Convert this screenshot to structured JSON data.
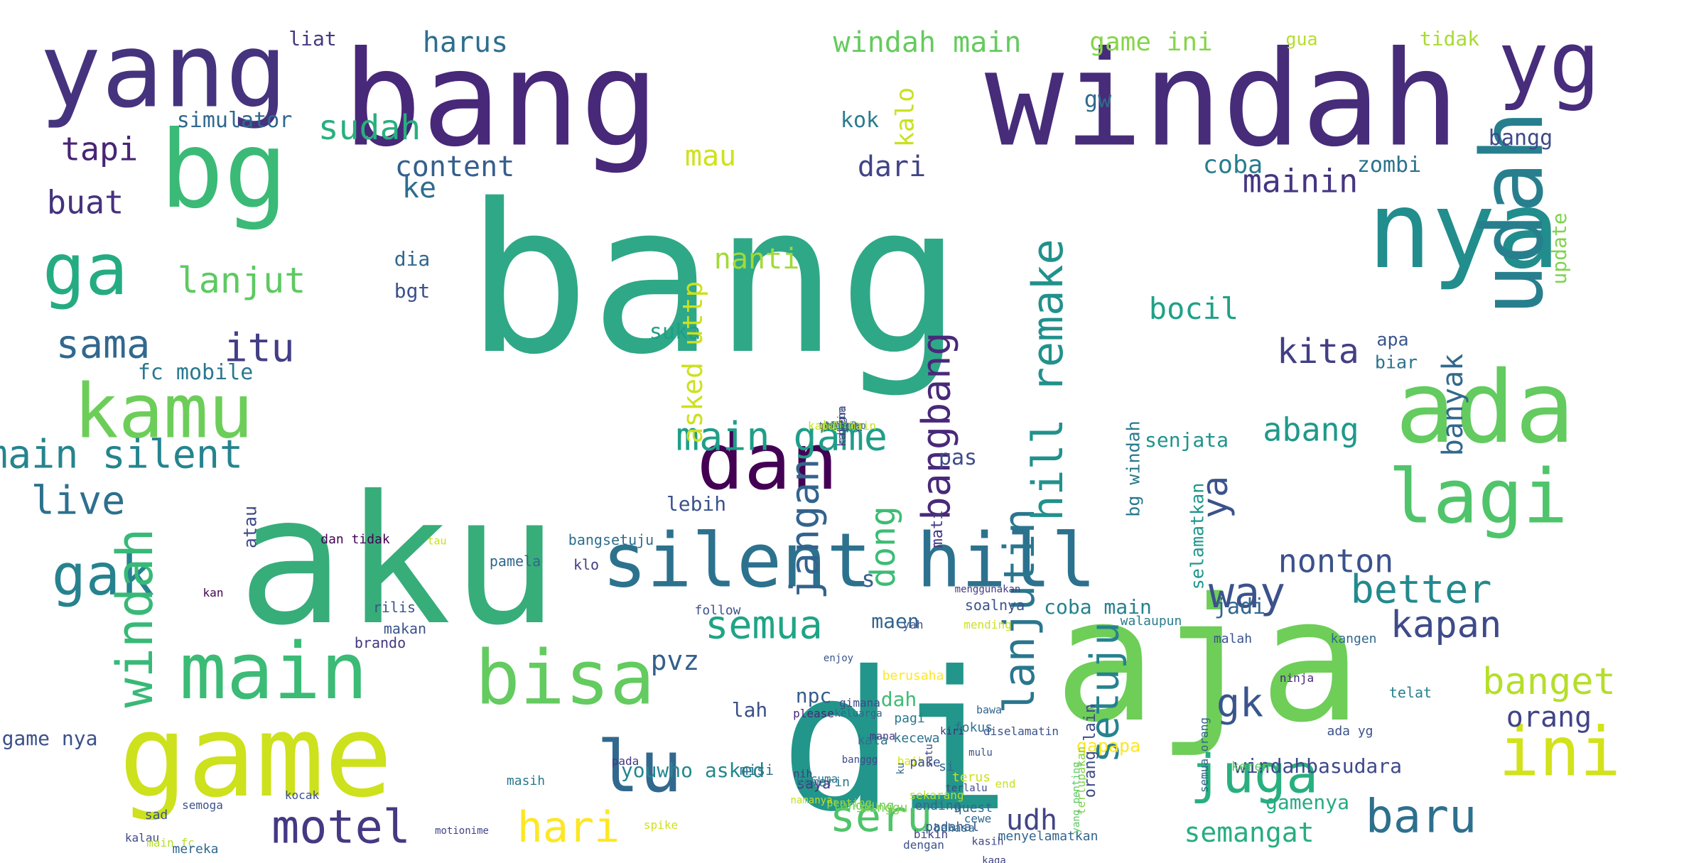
{
  "words": [
    {
      "t": "bang",
      "c": "#2fa887",
      "f": 290,
      "r": 0
    },
    {
      "t": "aku",
      "c": "#37ad7a",
      "f": 250,
      "r": 0
    },
    {
      "t": "windah",
      "c": "#472c7a",
      "f": 185,
      "r": 0
    },
    {
      "t": "bang",
      "c": "#482878",
      "f": 185,
      "r": 0
    },
    {
      "t": "di",
      "c": "#22968b",
      "f": 270,
      "r": 0
    },
    {
      "t": "aja",
      "c": "#6ece58",
      "f": 240,
      "r": 0
    },
    {
      "t": "game",
      "c": "#cde11d",
      "f": 160,
      "r": 0
    },
    {
      "t": "yang",
      "c": "#46337e",
      "f": 145,
      "r": 0
    },
    {
      "t": "bg",
      "c": "#3aba76",
      "f": 150,
      "r": 0
    },
    {
      "t": "nya",
      "c": "#228d8d",
      "f": 150,
      "r": 0
    },
    {
      "t": "ada",
      "c": "#63cb5f",
      "f": 140,
      "r": 0
    },
    {
      "t": "yg",
      "c": "#472d7b",
      "f": 120,
      "r": 0
    },
    {
      "t": "udah",
      "c": "#277f8e",
      "f": 120,
      "r": 1
    },
    {
      "t": "ga",
      "c": "#25ab82",
      "f": 100,
      "r": 0
    },
    {
      "t": "kamu",
      "c": "#6cce59",
      "f": 105,
      "r": 0
    },
    {
      "t": "main",
      "c": "#3bbb75",
      "f": 110,
      "r": 0
    },
    {
      "t": "bisa",
      "c": "#63cb5f",
      "f": 105,
      "r": 0
    },
    {
      "t": "silent hill",
      "c": "#2c728e",
      "f": 105,
      "r": 0
    },
    {
      "t": "dan",
      "c": "#440154",
      "f": 110,
      "r": 0
    },
    {
      "t": "lu",
      "c": "#31688e",
      "f": 100,
      "r": 0
    },
    {
      "t": "lagi",
      "c": "#50c46a",
      "f": 105,
      "r": 0
    },
    {
      "t": "ini",
      "c": "#d2e21b",
      "f": 95,
      "r": 0
    },
    {
      "t": "gak",
      "c": "#26828e",
      "f": 80,
      "r": 0
    },
    {
      "t": "juga",
      "c": "#29af7f",
      "f": 75,
      "r": 0
    },
    {
      "t": "windah",
      "c": "#38b977",
      "f": 70,
      "r": 1
    },
    {
      "t": "motel",
      "c": "#443983",
      "f": 65,
      "r": 0
    },
    {
      "t": "baru",
      "c": "#2d708e",
      "f": 65,
      "r": 0
    },
    {
      "t": "hari",
      "c": "#fde725",
      "f": 60,
      "r": 0
    },
    {
      "t": "seru",
      "c": "#4fc46a",
      "f": 60,
      "r": 0
    },
    {
      "t": "semua",
      "c": "#20a486",
      "f": 55,
      "r": 0
    },
    {
      "t": "way",
      "c": "#3b528b",
      "f": 60,
      "r": 0
    },
    {
      "t": "better",
      "c": "#23898e",
      "f": 55,
      "r": 0
    },
    {
      "t": "kapan",
      "c": "#3e4a89",
      "f": 52,
      "r": 0
    },
    {
      "t": "banget",
      "c": "#b5de2b",
      "f": 52,
      "r": 0
    },
    {
      "t": "orang",
      "c": "#414487",
      "f": 40,
      "r": 0
    },
    {
      "t": "gk",
      "c": "#39558c",
      "f": 55,
      "r": 0
    },
    {
      "t": "lanjutin",
      "c": "#2a768e",
      "f": 60,
      "r": 1
    },
    {
      "t": "setuju",
      "c": "#26828e",
      "f": 55,
      "r": 1
    },
    {
      "t": "hill remake",
      "c": "#21918c",
      "f": 60,
      "r": 1
    },
    {
      "t": "bangbang",
      "c": "#482979",
      "f": 55,
      "r": 1
    },
    {
      "t": "jangan",
      "c": "#33638d",
      "f": 55,
      "r": 1
    },
    {
      "t": "dong",
      "c": "#3dbc74",
      "f": 48,
      "r": 1
    },
    {
      "t": "main game",
      "c": "#1f9e89",
      "f": 55,
      "r": 0
    },
    {
      "t": "main silent",
      "c": "#25848e",
      "f": 55,
      "r": 0
    },
    {
      "t": "live",
      "c": "#2d708e",
      "f": 55,
      "r": 0
    },
    {
      "t": "sama",
      "c": "#31688e",
      "f": 55,
      "r": 0
    },
    {
      "t": "itu",
      "c": "#433e85",
      "f": 55,
      "r": 0
    },
    {
      "t": "lanjut",
      "c": "#5ec962",
      "f": 50,
      "r": 0
    },
    {
      "t": "tapi",
      "c": "#482475",
      "f": 45,
      "r": 0
    },
    {
      "t": "buat",
      "c": "#46327e",
      "f": 45,
      "r": 0
    },
    {
      "t": "sudah",
      "c": "#29af7f",
      "f": 48,
      "r": 0
    },
    {
      "t": "ke",
      "c": "#2f6c8e",
      "f": 40,
      "r": 0
    },
    {
      "t": "harus",
      "c": "#2e6e8e",
      "f": 40,
      "r": 0
    },
    {
      "t": "windah main",
      "c": "#65cb5e",
      "f": 40,
      "r": 0
    },
    {
      "t": "game ini",
      "c": "#86d549",
      "f": 36,
      "r": 0
    },
    {
      "t": "mainin",
      "c": "#453581",
      "f": 45,
      "r": 0
    },
    {
      "t": "kita",
      "c": "#423f85",
      "f": 48,
      "r": 0
    },
    {
      "t": "abang",
      "c": "#1f998a",
      "f": 45,
      "r": 0
    },
    {
      "t": "bocil",
      "c": "#1fa187",
      "f": 42,
      "r": 0
    },
    {
      "t": "nonton",
      "c": "#3b518b",
      "f": 45,
      "r": 0
    },
    {
      "t": "ya",
      "c": "#3b528b",
      "f": 50,
      "r": 1
    },
    {
      "t": "banyak",
      "c": "#31688e",
      "f": 40,
      "r": 1
    },
    {
      "t": "content",
      "c": "#355f8d",
      "f": 40,
      "r": 0
    },
    {
      "t": "mau",
      "c": "#d0e11c",
      "f": 40,
      "r": 0
    },
    {
      "t": "dari",
      "c": "#414487",
      "f": 40,
      "r": 0
    },
    {
      "t": "nanti",
      "c": "#a2da37",
      "f": 40,
      "r": 0
    },
    {
      "t": "kok",
      "c": "#287c8e",
      "f": 30,
      "r": 0
    },
    {
      "t": "coba",
      "c": "#287d8e",
      "f": 35,
      "r": 0
    },
    {
      "t": "zombi",
      "c": "#2d718e",
      "f": 30,
      "r": 0
    },
    {
      "t": "gw",
      "c": "#30698e",
      "f": 32,
      "r": 0
    },
    {
      "t": "bangg",
      "c": "#3e4989",
      "f": 30,
      "r": 0
    },
    {
      "t": "gua",
      "c": "#b5de2b",
      "f": 25,
      "r": 0
    },
    {
      "t": "tidak",
      "c": "#a8db34",
      "f": 28,
      "r": 0
    },
    {
      "t": "liat",
      "c": "#443a83",
      "f": 28,
      "r": 0
    },
    {
      "t": "simulator",
      "c": "#31688e",
      "f": 30,
      "r": 0
    },
    {
      "t": "fc mobile",
      "c": "#2a788e",
      "f": 30,
      "r": 0
    },
    {
      "t": "pvz",
      "c": "#355e8d",
      "f": 38,
      "r": 0
    },
    {
      "t": "suka",
      "c": "#1f9f88",
      "f": 30,
      "r": 0
    },
    {
      "t": "pas",
      "c": "#3e4a89",
      "f": 30,
      "r": 0
    },
    {
      "t": "asked uttp",
      "c": "#cde11d",
      "f": 38,
      "r": 1
    },
    {
      "t": "dia",
      "c": "#31688e",
      "f": 28,
      "r": 0
    },
    {
      "t": "bgt",
      "c": "#3c508b",
      "f": 28,
      "r": 0
    },
    {
      "t": "lebih",
      "c": "#3b528b",
      "f": 28,
      "r": 0
    },
    {
      "t": "senjata",
      "c": "#20938c",
      "f": 28,
      "r": 0
    },
    {
      "t": "apa",
      "c": "#39568c",
      "f": 25,
      "r": 0
    },
    {
      "t": "biar",
      "c": "#2c728e",
      "f": 25,
      "r": 0
    },
    {
      "t": "jadi",
      "c": "#32658e",
      "f": 30,
      "r": 0
    },
    {
      "t": "maen",
      "c": "#33638d",
      "f": 28,
      "r": 0
    },
    {
      "t": "npc",
      "c": "#365c8d",
      "f": 28,
      "r": 0
    },
    {
      "t": "lah",
      "c": "#3b518b",
      "f": 28,
      "r": 0
    },
    {
      "t": "youwho asked",
      "c": "#24878e",
      "f": 28,
      "r": 0
    },
    {
      "t": "gamenya",
      "c": "#25ab82",
      "f": 28,
      "r": 0
    },
    {
      "t": "udh",
      "c": "#414487",
      "f": 40,
      "r": 0
    },
    {
      "t": "semangat",
      "c": "#26ad81",
      "f": 38,
      "r": 0
    },
    {
      "t": "windahbasudara",
      "c": "#3e4989",
      "f": 28,
      "r": 0
    },
    {
      "t": "gapapa",
      "c": "#fde725",
      "f": 25,
      "r": 0
    },
    {
      "t": "coba main",
      "c": "#26818e",
      "f": 28,
      "r": 0
    },
    {
      "t": "game nya",
      "c": "#3b518b",
      "f": 28,
      "r": 0
    },
    {
      "t": "dah",
      "c": "#3fbc73",
      "f": 28,
      "r": 0
    },
    {
      "t": "s",
      "c": "#355f8d",
      "f": 32,
      "r": 0
    },
    {
      "t": "kalo",
      "c": "#cae11f",
      "f": 35,
      "r": 1
    },
    {
      "t": "update",
      "c": "#7fd34e",
      "f": 28,
      "r": 1
    },
    {
      "t": "bg windah",
      "c": "#29798e",
      "f": 25,
      "r": 1
    },
    {
      "t": "selamatkan",
      "c": "#1f968b",
      "f": 25,
      "r": 1
    },
    {
      "t": "mati",
      "c": "#443983",
      "f": 22,
      "r": 1
    },
    {
      "t": "orang lain",
      "c": "#3e4989",
      "f": 22,
      "r": 1
    },
    {
      "t": "atau",
      "c": "#3e4a89",
      "f": 25,
      "r": 1
    },
    {
      "t": "bangsetuju",
      "c": "#2e6e8e",
      "f": 20,
      "r": 0
    },
    {
      "t": "pamela",
      "c": "#31688e",
      "f": 20,
      "r": 0
    },
    {
      "t": "rilis",
      "c": "#3a548c",
      "f": 20,
      "r": 0
    },
    {
      "t": "klo",
      "c": "#424086",
      "f": 20,
      "r": 0
    },
    {
      "t": "kan",
      "c": "#440154",
      "f": 16,
      "r": 0
    },
    {
      "t": "makan",
      "c": "#3b528b",
      "f": 20,
      "r": 0
    },
    {
      "t": "brando",
      "c": "#453781",
      "f": 20,
      "r": 0
    },
    {
      "t": "walaupun",
      "c": "#287c8e",
      "f": 18,
      "r": 0
    },
    {
      "t": "malah",
      "c": "#3a548c",
      "f": 18,
      "r": 0
    },
    {
      "t": "kangen",
      "c": "#31688e",
      "f": 18,
      "r": 0
    },
    {
      "t": "ninja",
      "c": "#482777",
      "f": 16,
      "r": 0
    },
    {
      "t": "telat",
      "c": "#26828e",
      "f": 20,
      "r": 0
    },
    {
      "t": "ada yg",
      "c": "#3b528b",
      "f": 18,
      "r": 0
    },
    {
      "t": "pagi",
      "c": "#2a788e",
      "f": 18,
      "r": 0
    },
    {
      "t": "fokus",
      "c": "#2c728e",
      "f": 18,
      "r": 0
    },
    {
      "t": "keren",
      "c": "#5ec962",
      "f": 18,
      "r": 0
    },
    {
      "t": "kecewa",
      "c": "#2c728e",
      "f": 18,
      "r": 0
    },
    {
      "t": "kata",
      "c": "#2d708e",
      "f": 18,
      "r": 0
    },
    {
      "t": "si",
      "c": "#31688e",
      "f": 18,
      "r": 0
    },
    {
      "t": "cuma",
      "c": "#2a788e",
      "f": 16,
      "r": 0
    },
    {
      "t": "kocak",
      "c": "#3b528b",
      "f": 16,
      "r": 0
    },
    {
      "t": "please",
      "c": "#482677",
      "f": 16,
      "r": 0
    },
    {
      "t": "mana",
      "c": "#443983",
      "f": 15,
      "r": 0
    },
    {
      "t": "banggg",
      "c": "#3e4989",
      "f": 14,
      "r": 0
    },
    {
      "t": "nih",
      "c": "#443983",
      "f": 15,
      "r": 0
    },
    {
      "t": "saya",
      "c": "#46337e",
      "f": 20,
      "r": 0
    },
    {
      "t": "follow",
      "c": "#3b528b",
      "f": 18,
      "r": 0
    },
    {
      "t": "misi",
      "c": "#2d708e",
      "f": 20,
      "r": 0
    },
    {
      "t": "masih",
      "c": "#2a788e",
      "f": 18,
      "r": 0
    },
    {
      "t": "pada",
      "c": "#453781",
      "f": 16,
      "r": 0
    },
    {
      "t": "gimana",
      "c": "#3e4989",
      "f": 16,
      "r": 0
    },
    {
      "t": "keluarga",
      "c": "#31688e",
      "f": 14,
      "r": 0
    },
    {
      "t": "dan tidak",
      "c": "#440154",
      "f": 18,
      "r": 0
    },
    {
      "t": "tau",
      "c": "#c8e020",
      "f": 15,
      "r": 0
    },
    {
      "t": "baik",
      "c": "#d8e219",
      "f": 16,
      "r": 0
    },
    {
      "t": "berusaha",
      "c": "#fde725",
      "f": 18,
      "r": 0
    },
    {
      "t": "enjoy",
      "c": "#3a548c",
      "f": 14,
      "r": 0
    },
    {
      "t": "yah",
      "c": "#3b528b",
      "f": 16,
      "r": 0
    },
    {
      "t": "menggunakan",
      "c": "#443983",
      "f": 14,
      "r": 0
    },
    {
      "t": "soalnya",
      "c": "#3b528b",
      "f": 20,
      "r": 0
    },
    {
      "t": "mending",
      "c": "#cde11d",
      "f": 16,
      "r": 0
    },
    {
      "t": "bawa",
      "c": "#32658e",
      "f": 15,
      "r": 0
    },
    {
      "t": "diselamatin",
      "c": "#3b528b",
      "f": 16,
      "r": 0
    },
    {
      "t": "kiri",
      "c": "#482777",
      "f": 14,
      "r": 0
    },
    {
      "t": "mulu",
      "c": "#3b528b",
      "f": 14,
      "r": 0
    },
    {
      "t": "sekarang",
      "c": "#b5de2b",
      "f": 16,
      "r": 0
    },
    {
      "t": "penting",
      "c": "#a0da39",
      "f": 15,
      "r": 0
    },
    {
      "t": "minggu",
      "c": "#84d44b",
      "f": 18,
      "r": 0
    },
    {
      "t": "menyelamatkan",
      "c": "#32658e",
      "f": 18,
      "r": 0
    },
    {
      "t": "semua orang",
      "c": "#33638d",
      "f": 16,
      "r": 1
    },
    {
      "t": "terlupakan",
      "c": "#84d44b",
      "f": 16,
      "r": 1
    },
    {
      "t": "yang penting",
      "c": "#5ec962",
      "f": 14,
      "r": 1
    },
    {
      "t": "terlalu",
      "c": "#3e4989",
      "f": 14,
      "r": 0
    },
    {
      "t": "ku",
      "c": "#32658e",
      "f": 14,
      "r": 1
    },
    {
      "t": "satu",
      "c": "#414487",
      "f": 14,
      "r": 1
    },
    {
      "t": "terus",
      "c": "#cde11d",
      "f": 18,
      "r": 0
    },
    {
      "t": "pake",
      "c": "#3b528b",
      "f": 18,
      "r": 0
    },
    {
      "t": "dengan",
      "c": "#3b528b",
      "f": 16,
      "r": 0
    },
    {
      "t": "bikin",
      "c": "#414487",
      "f": 16,
      "r": 0
    },
    {
      "t": "kalau",
      "c": "#3e4989",
      "f": 16,
      "r": 0
    },
    {
      "t": "main fc",
      "c": "#b5de2b",
      "f": 16,
      "r": 0
    },
    {
      "t": "sad",
      "c": "#3a548c",
      "f": 18,
      "r": 0
    },
    {
      "t": "spike",
      "c": "#d0e11c",
      "f": 16,
      "r": 0
    },
    {
      "t": "motionime",
      "c": "#414487",
      "f": 14,
      "r": 0
    },
    {
      "t": "mereka",
      "c": "#31688e",
      "f": 18,
      "r": 0
    },
    {
      "t": "semoga",
      "c": "#3b528b",
      "f": 16,
      "r": 0
    },
    {
      "t": "namanya",
      "c": "#c2df23",
      "f": 14,
      "r": 0
    },
    {
      "t": "ending",
      "c": "#31688e",
      "f": 18,
      "r": 0
    },
    {
      "t": "padahal",
      "c": "#3a548c",
      "f": 18,
      "r": 0
    },
    {
      "t": "cewe",
      "c": "#31688e",
      "f": 16,
      "r": 0
    },
    {
      "t": "kaga",
      "c": "#414487",
      "f": 14,
      "r": 0
    },
    {
      "t": "langsung",
      "c": "#6ece58",
      "f": 18,
      "r": 0
    },
    {
      "t": "kemarin",
      "c": "#2a788e",
      "f": 18,
      "r": 0
    },
    {
      "t": "kasih",
      "c": "#3e4989",
      "f": 15,
      "r": 0
    },
    {
      "t": "end",
      "c": "#cae11f",
      "f": 16,
      "r": 0
    },
    {
      "t": "quest",
      "c": "#31688e",
      "f": 18,
      "r": 0
    },
    {
      "t": "bahasa",
      "c": "#2d708e",
      "f": 16,
      "r": 0
    },
    {
      "t": "karena",
      "c": "#46337e",
      "f": 16,
      "r": 1
    },
    {
      "t": "maksim",
      "c": "#31688e",
      "f": 14,
      "r": 1
    },
    {
      "t": "prinsip",
      "c": "#482677",
      "f": 14,
      "r": 0
    },
    {
      "t": "gg",
      "c": "#3e4989",
      "f": 14,
      "r": 0
    },
    {
      "t": "jam",
      "c": "#a2da37",
      "f": 14,
      "r": 0
    },
    {
      "t": "terhadap",
      "c": "#31688e",
      "f": 14,
      "r": 0
    },
    {
      "t": "sampe",
      "c": "#33638d",
      "f": 18,
      "r": 0
    },
    {
      "t": "ulang",
      "c": "#31688e",
      "f": 16,
      "r": 0
    },
    {
      "t": "kah",
      "c": "#3e4989",
      "f": 14,
      "r": 0
    },
    {
      "t": "bukan",
      "c": "#b5de2b",
      "f": 18,
      "r": 0
    },
    {
      "t": "belum",
      "c": "#31688e",
      "f": 16,
      "r": 0
    },
    {
      "t": "tamat",
      "c": "#2d708e",
      "f": 16,
      "r": 0
    },
    {
      "t": "bng",
      "c": "#3e4989",
      "f": 14,
      "r": 1
    },
    {
      "t": "kapan main",
      "c": "#cde11d",
      "f": 16,
      "r": 0
    },
    {
      "t": "foto",
      "c": "#3b528b",
      "f": 15,
      "r": 0
    },
    {
      "t": "dulu",
      "c": "#c8e020",
      "f": 14,
      "r": 0
    },
    {
      "t": "hati",
      "c": "#5ec962",
      "f": 14,
      "r": 0
    },
    {
      "t": "ia",
      "c": "#32658e",
      "f": 14,
      "r": 0
    }
  ]
}
